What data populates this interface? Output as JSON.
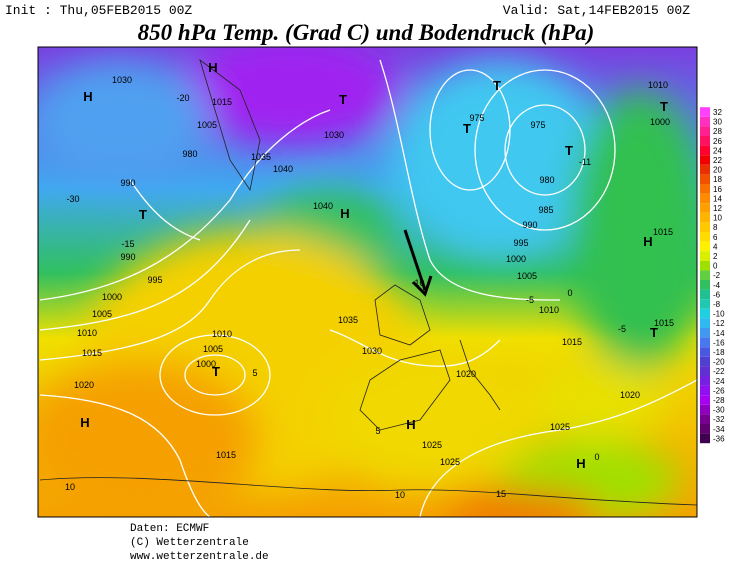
{
  "header": {
    "init": "Init : Thu,05FEB2015 00Z",
    "valid": "Valid: Sat,14FEB2015 00Z",
    "title": "850 hPa Temp. (Grad C) und Bodendruck (hPa)"
  },
  "colorbar": {
    "labels": [
      32,
      30,
      28,
      26,
      24,
      22,
      20,
      18,
      16,
      14,
      12,
      10,
      8,
      6,
      4,
      2,
      0,
      -2,
      -4,
      -6,
      -8,
      -10,
      -12,
      -14,
      -16,
      -18,
      -20,
      -22,
      -24,
      -26,
      -28,
      -30,
      -32,
      -34,
      -36
    ],
    "colors": [
      "#ff40ff",
      "#ff30c0",
      "#ff2090",
      "#ff1060",
      "#ff0030",
      "#f00000",
      "#e83000",
      "#f05000",
      "#f87000",
      "#ff8c00",
      "#ffa000",
      "#ffb400",
      "#ffc800",
      "#ffdc00",
      "#fff000",
      "#d8f000",
      "#a0e000",
      "#60d040",
      "#30c060",
      "#20c090",
      "#20c8b0",
      "#20d0e0",
      "#30b8f0",
      "#4098f0",
      "#4878f0",
      "#4858e0",
      "#5040d0",
      "#6030d0",
      "#7820e0",
      "#9010f0",
      "#a800f0",
      "#9000c0",
      "#780090",
      "#600070",
      "#400050"
    ]
  },
  "map": {
    "labels": [
      "H",
      "H",
      "H",
      "H",
      "H",
      "H",
      "H",
      "T",
      "T",
      "T",
      "T",
      "T",
      "T",
      "T",
      "T",
      "1030",
      "1015",
      "1005",
      "980",
      "990",
      "1035",
      "1040",
      "1040",
      "1030",
      "975",
      "975",
      "980",
      "985",
      "990",
      "995",
      "1000",
      "1005",
      "1010",
      "1015",
      "1020",
      "1025",
      "1025",
      "1025",
      "1015",
      "1010",
      "1005",
      "1000",
      "1020",
      "1015",
      "1010",
      "1005",
      "1000",
      "995",
      "990",
      "1035",
      "1030",
      "1020",
      "1010",
      "1000",
      "1015",
      "1015",
      "-30",
      "-20",
      "-15",
      "-10",
      "-5",
      "0",
      "-5",
      "-11",
      "5",
      "5",
      "0",
      "10",
      "10",
      "15"
    ]
  },
  "footer": {
    "lines": [
      "Daten: ECMWF",
      "(C) Wetterzentrale",
      "www.wetterzentrale.de"
    ]
  }
}
